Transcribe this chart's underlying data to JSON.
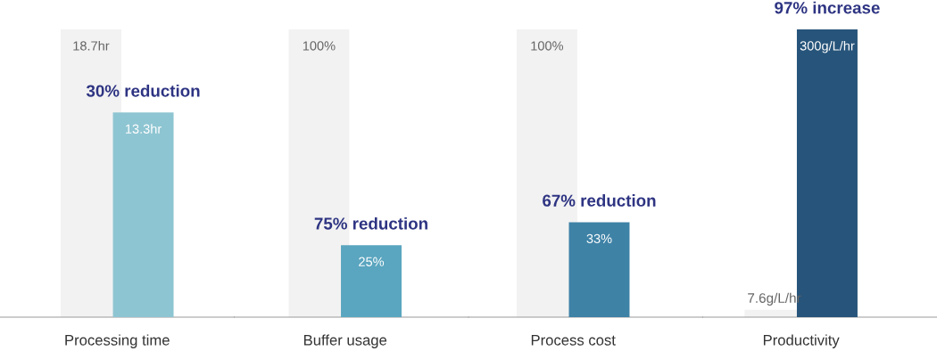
{
  "chart_data": [
    {
      "type": "bar",
      "categories": [
        "Processing time"
      ],
      "series": [
        {
          "color": "#f2f2f2",
          "values": [
            18.7
          ],
          "value_labels": [
            "18.7hr"
          ]
        },
        {
          "colors": [
            "#8ec5d2"
          ],
          "values": [
            13.3
          ],
          "value_labels": [
            "13.3hr"
          ]
        }
      ],
      "annotations": [
        {
          "text": "30% reduction",
          "x": "Processing time",
          "y": 13.3
        }
      ]
    },
    {
      "type": "bar",
      "categories": [
        "Buffer usage"
      ],
      "series": [
        {
          "color": "#f2f2f2",
          "values": [
            100
          ],
          "value_labels": [
            "100%"
          ]
        },
        {
          "colors": [
            "#5aa5bf"
          ],
          "values": [
            25
          ],
          "value_labels": [
            "25%"
          ]
        }
      ],
      "annotations": [
        {
          "text": "75% reduction",
          "x": "Buffer usage",
          "y": 25
        }
      ]
    },
    {
      "type": "bar",
      "categories": [
        "Process cost"
      ],
      "series": [
        {
          "color": "#f2f2f2",
          "values": [
            100
          ],
          "value_labels": [
            "100%"
          ]
        },
        {
          "colors": [
            "#3e82a6"
          ],
          "values": [
            33
          ],
          "value_labels": [
            "33%"
          ]
        }
      ],
      "annotations": [
        {
          "text": "67% reduction",
          "x": "Process cost",
          "y": 33
        }
      ]
    },
    {
      "type": "bar",
      "categories": [
        "Productivity"
      ],
      "series": [
        {
          "color": "#f2f2f2",
          "values": [
            7.6
          ],
          "value_labels": [
            "7.6g/L/hr"
          ]
        },
        {
          "colors": [
            "#27547a"
          ],
          "values": [
            300
          ],
          "value_labels": [
            "300g/L/hr"
          ]
        }
      ],
      "annotations": [
        {
          "text": "97% increase",
          "x": "Productivity",
          "y": 300
        }
      ]
    }
  ]
}
